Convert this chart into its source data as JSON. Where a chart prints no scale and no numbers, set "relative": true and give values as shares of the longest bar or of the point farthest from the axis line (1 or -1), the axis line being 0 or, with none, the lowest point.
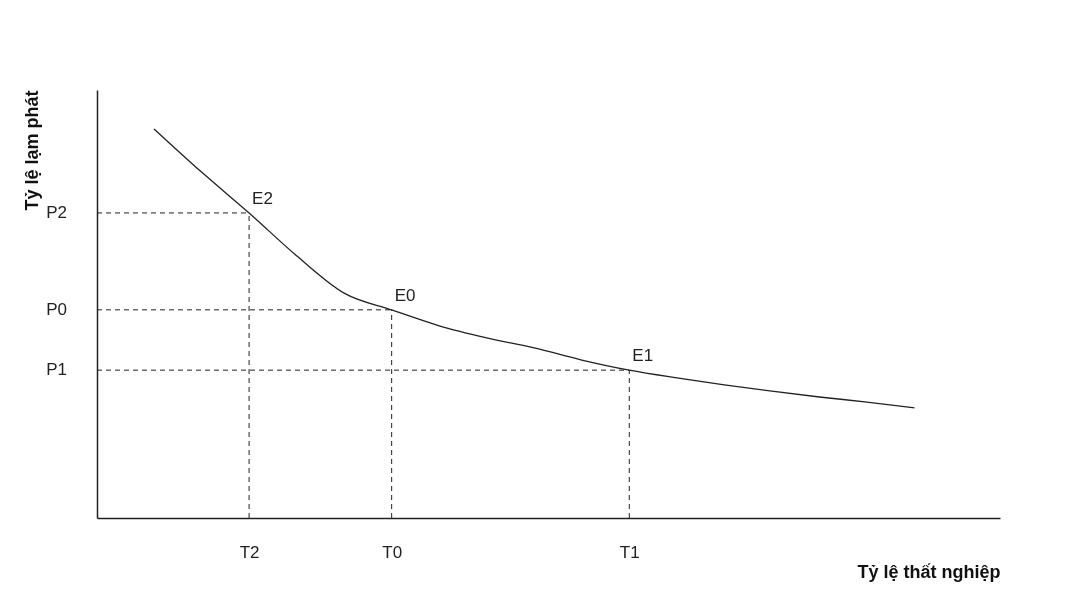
{
  "chart_data": {
    "type": "line",
    "xlabel": "Tỷ lệ thất nghiệp",
    "ylabel": "Tỷ lệ lạm phát",
    "relative": true,
    "legend": false,
    "marker": "none",
    "categories": [
      null,
      null,
      "T2",
      null,
      null,
      "T0",
      null,
      null,
      null,
      null,
      "T1",
      null,
      null,
      null,
      null,
      null,
      null
    ],
    "series": [
      {
        "color": "#222222",
        "line_style": "solid",
        "values": [
          1,
          0.889,
          0.784,
          0.674,
          0.578,
          0.535,
          0.494,
          0.463,
          0.437,
          0.406,
          0.38,
          0.36,
          0.342,
          0.326,
          0.311,
          0.298,
          0.283
        ]
      }
    ],
    "annotations": [
      {
        "text": "E2",
        "x": "T2",
        "y": 0.784
      },
      {
        "text": "E0",
        "x": "T0",
        "y": 0.535
      },
      {
        "text": "E1",
        "x": "T1",
        "y": 0.38
      },
      "P2",
      "P0",
      "P1"
    ]
  }
}
